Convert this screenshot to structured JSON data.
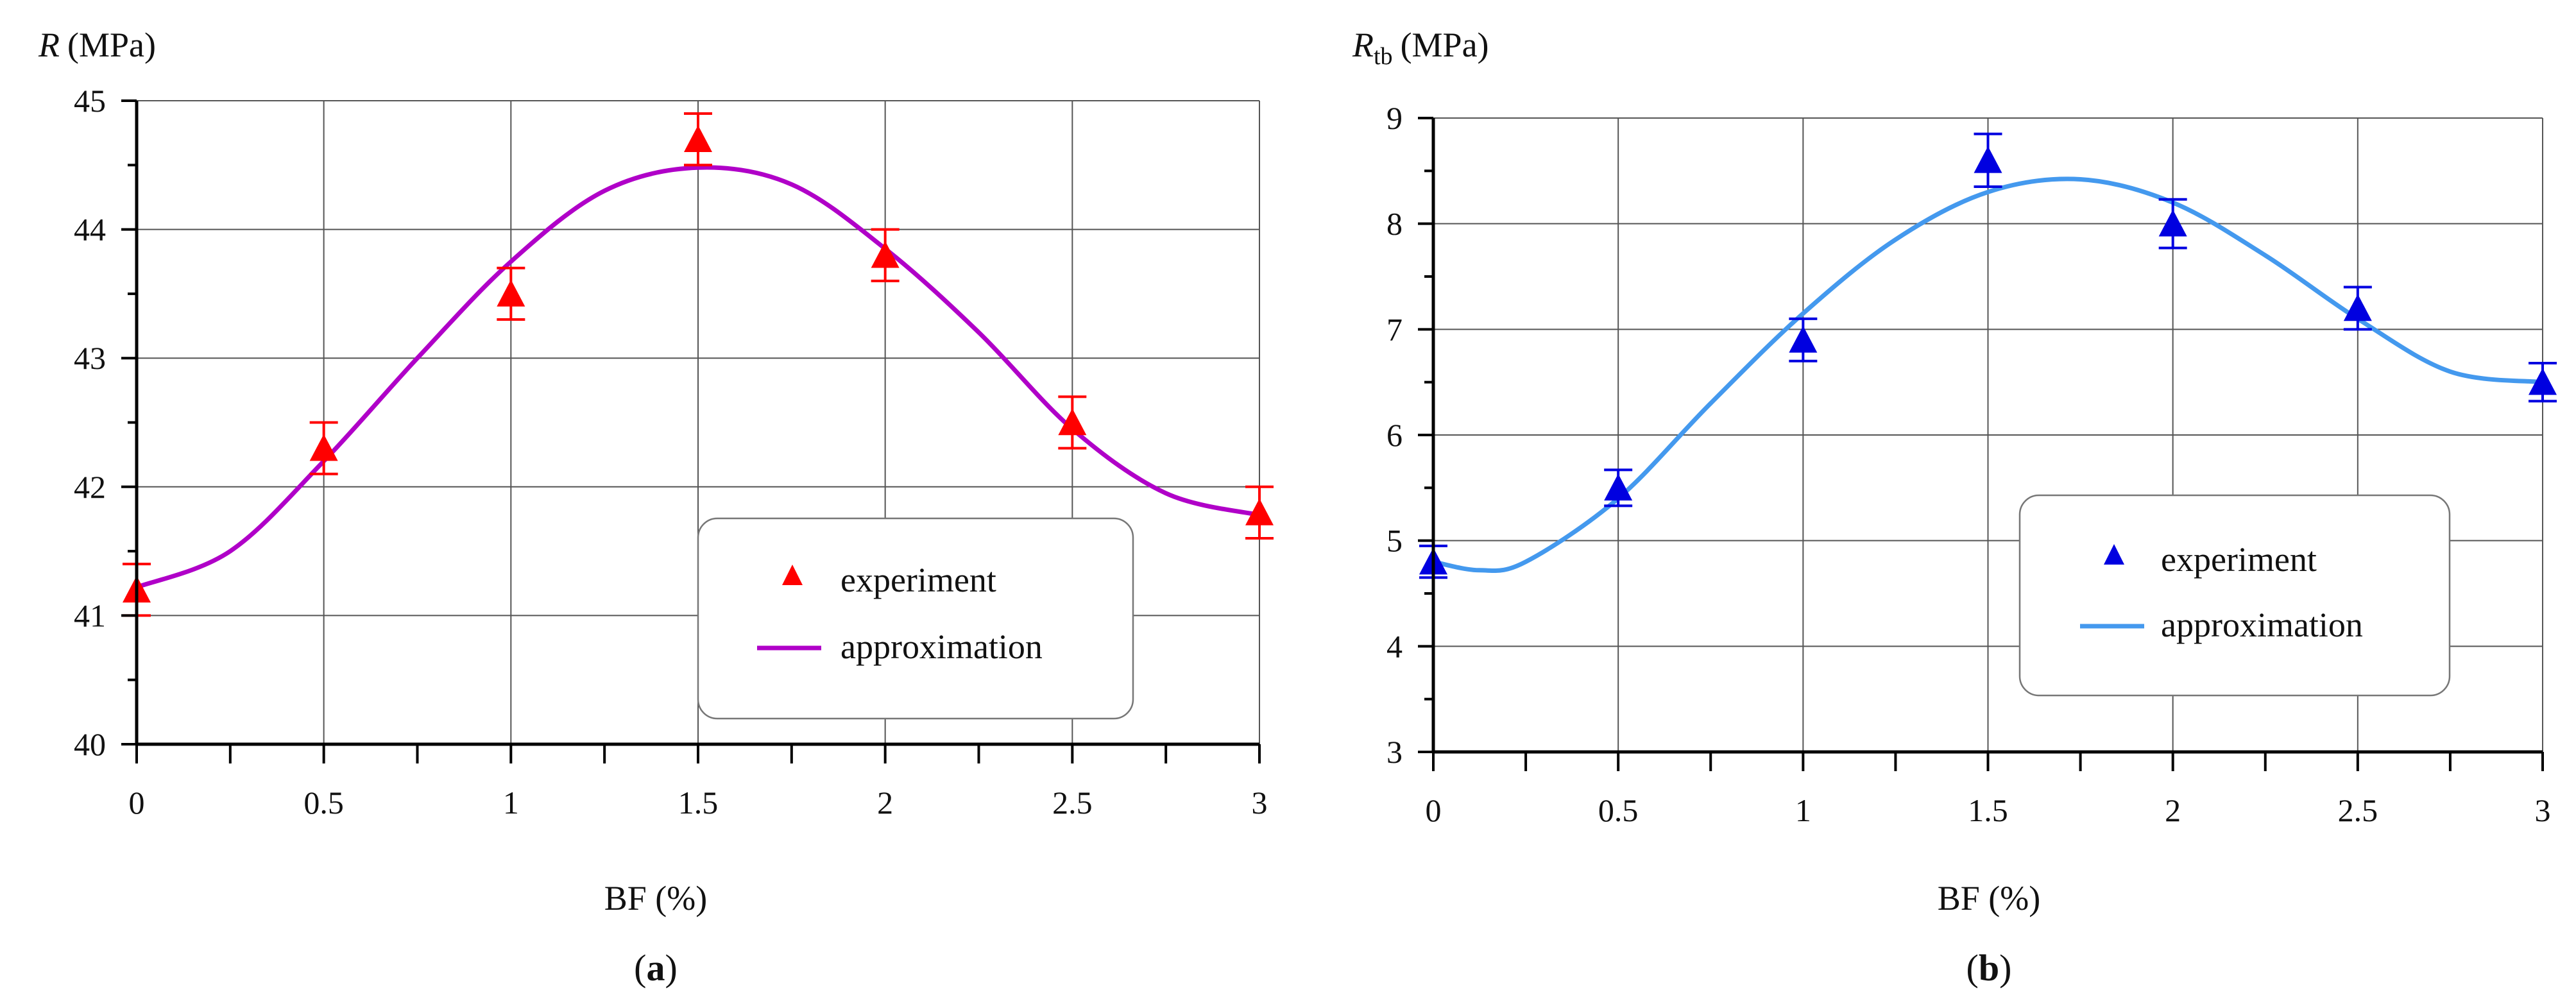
{
  "chart_data": [
    {
      "type": "scatter",
      "panel_label": "a",
      "ylabel_main": "R",
      "ylabel_sub": "",
      "ylabel_unit": "(MPa)",
      "xlabel": "BF (%)",
      "xlim": [
        0,
        3
      ],
      "ylim": [
        40,
        45
      ],
      "x_ticks": [
        "0",
        "0.5",
        "1",
        "1.5",
        "2",
        "2.5",
        "3"
      ],
      "y_ticks": [
        "40",
        "41",
        "42",
        "43",
        "44",
        "45"
      ],
      "experiment_color": "#ff0000",
      "approximation_color": "#b000c8",
      "legend": {
        "experiment": "experiment",
        "approximation": "approximation"
      },
      "legend_position": "bottom-right",
      "grid": true,
      "experiment": {
        "x": [
          0,
          0.5,
          1,
          1.5,
          2,
          2.5,
          3
        ],
        "y": [
          41.2,
          42.3,
          43.5,
          44.7,
          43.8,
          42.5,
          41.8
        ],
        "err": [
          0.2,
          0.2,
          0.2,
          0.2,
          0.2,
          0.2,
          0.2
        ]
      },
      "approximation": {
        "x": [
          0,
          0.25,
          0.5,
          0.75,
          1,
          1.25,
          1.5,
          1.75,
          2,
          2.25,
          2.5,
          2.75,
          3
        ],
        "y": [
          41.22,
          41.5,
          42.2,
          43.0,
          43.75,
          44.3,
          44.48,
          44.35,
          43.85,
          43.2,
          42.45,
          41.95,
          41.78
        ]
      }
    },
    {
      "type": "scatter",
      "panel_label": "b",
      "ylabel_main": "R",
      "ylabel_sub": "tb",
      "ylabel_unit": "(MPa)",
      "xlabel": "BF (%)",
      "xlim": [
        0,
        3
      ],
      "ylim": [
        3,
        9
      ],
      "x_ticks": [
        "0",
        "0.5",
        "1",
        "1.5",
        "2",
        "2.5",
        "3"
      ],
      "y_ticks": [
        "3",
        "4",
        "5",
        "6",
        "7",
        "8",
        "9"
      ],
      "experiment_color": "#0000e0",
      "approximation_color": "#4499ee",
      "legend": {
        "experiment": "experiment",
        "approximation": "approximation"
      },
      "legend_position": "center-right",
      "grid": true,
      "experiment": {
        "x": [
          0,
          0.5,
          1,
          1.5,
          2,
          2.5,
          3
        ],
        "y": [
          4.8,
          5.5,
          6.9,
          8.6,
          8.0,
          7.2,
          6.5
        ],
        "err": [
          0.15,
          0.17,
          0.2,
          0.25,
          0.23,
          0.2,
          0.18
        ]
      },
      "approximation": {
        "x": [
          0,
          0.125,
          0.25,
          0.5,
          0.75,
          1,
          1.25,
          1.5,
          1.75,
          2,
          2.25,
          2.5,
          2.75,
          3
        ],
        "y": [
          4.8,
          4.72,
          4.8,
          5.4,
          6.3,
          7.15,
          7.85,
          8.3,
          8.42,
          8.2,
          7.7,
          7.1,
          6.6,
          6.5
        ]
      }
    }
  ]
}
